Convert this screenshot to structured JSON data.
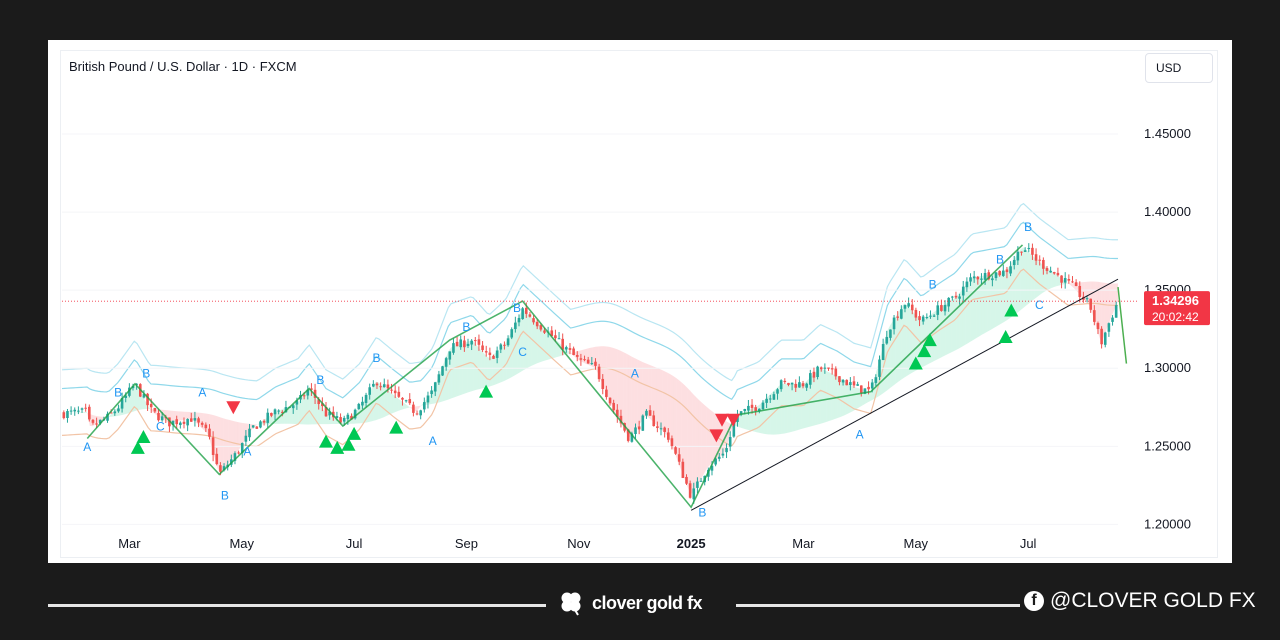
{
  "chart_data": {
    "type": "candlestick",
    "title": "British Pound / U.S. Dollar · 1D · FXCM",
    "currency": "USD",
    "y_ticks": [
      1.45,
      1.4,
      1.35,
      1.3,
      1.25,
      1.2
    ],
    "y_tick_labels": [
      "1.45000",
      "1.40000",
      "1.35000",
      "1.30000",
      "1.25000",
      "1.20000"
    ],
    "ylim": [
      1.19,
      1.475
    ],
    "x_ticks": [
      {
        "label": "Mar",
        "t": 1.2
      },
      {
        "label": "May",
        "t": 3.2
      },
      {
        "label": "Jul",
        "t": 5.2
      },
      {
        "label": "Sep",
        "t": 7.2
      },
      {
        "label": "Nov",
        "t": 9.2
      },
      {
        "label": "2025",
        "t": 11.2
      },
      {
        "label": "Mar",
        "t": 13.2
      },
      {
        "label": "May",
        "t": 15.2
      },
      {
        "label": "Jul",
        "t": 17.2
      }
    ],
    "xlim": [
      0,
      18.8
    ],
    "price_path": [
      [
        0.0,
        1.271
      ],
      [
        0.45,
        1.272
      ],
      [
        0.5,
        1.262
      ],
      [
        0.8,
        1.268
      ],
      [
        1.0,
        1.275
      ],
      [
        1.3,
        1.29
      ],
      [
        1.6,
        1.272
      ],
      [
        1.9,
        1.265
      ],
      [
        2.3,
        1.268
      ],
      [
        2.6,
        1.258
      ],
      [
        2.8,
        1.232
      ],
      [
        3.1,
        1.245
      ],
      [
        3.4,
        1.262
      ],
      [
        3.8,
        1.272
      ],
      [
        4.2,
        1.278
      ],
      [
        4.4,
        1.287
      ],
      [
        4.7,
        1.271
      ],
      [
        5.0,
        1.265
      ],
      [
        5.3,
        1.275
      ],
      [
        5.6,
        1.292
      ],
      [
        5.9,
        1.283
      ],
      [
        6.3,
        1.272
      ],
      [
        6.6,
        1.285
      ],
      [
        6.9,
        1.313
      ],
      [
        7.3,
        1.318
      ],
      [
        7.6,
        1.306
      ],
      [
        7.9,
        1.316
      ],
      [
        8.2,
        1.338
      ],
      [
        8.5,
        1.328
      ],
      [
        8.8,
        1.318
      ],
      [
        9.2,
        1.305
      ],
      [
        9.5,
        1.3
      ],
      [
        9.8,
        1.275
      ],
      [
        10.1,
        1.255
      ],
      [
        10.4,
        1.27
      ],
      [
        10.8,
        1.256
      ],
      [
        11.2,
        1.218
      ],
      [
        11.5,
        1.237
      ],
      [
        11.8,
        1.246
      ],
      [
        12.0,
        1.27
      ],
      [
        12.4,
        1.276
      ],
      [
        12.8,
        1.29
      ],
      [
        13.2,
        1.29
      ],
      [
        13.5,
        1.3
      ],
      [
        13.8,
        1.295
      ],
      [
        14.1,
        1.288
      ],
      [
        14.4,
        1.285
      ],
      [
        14.7,
        1.325
      ],
      [
        15.0,
        1.342
      ],
      [
        15.3,
        1.33
      ],
      [
        15.6,
        1.338
      ],
      [
        15.9,
        1.345
      ],
      [
        16.2,
        1.358
      ],
      [
        16.5,
        1.36
      ],
      [
        16.8,
        1.362
      ],
      [
        17.1,
        1.378
      ],
      [
        17.4,
        1.368
      ],
      [
        17.7,
        1.36
      ],
      [
        18.0,
        1.352
      ],
      [
        18.3,
        1.34
      ],
      [
        18.5,
        1.316
      ],
      [
        18.65,
        1.33
      ],
      [
        18.8,
        1.343
      ]
    ],
    "wave_labels": [
      {
        "text": "A",
        "t": 0.45,
        "y": 1.247
      },
      {
        "text": "B",
        "t": 1.0,
        "y": 1.282
      },
      {
        "text": "B",
        "t": 1.5,
        "y": 1.294
      },
      {
        "text": "C",
        "t": 1.75,
        "y": 1.26
      },
      {
        "text": "A",
        "t": 2.5,
        "y": 1.282
      },
      {
        "text": "B",
        "t": 2.9,
        "y": 1.216
      },
      {
        "text": "A",
        "t": 3.3,
        "y": 1.244
      },
      {
        "text": "B",
        "t": 4.6,
        "y": 1.29
      },
      {
        "text": "B",
        "t": 5.6,
        "y": 1.304
      },
      {
        "text": "A",
        "t": 6.6,
        "y": 1.251
      },
      {
        "text": "B",
        "t": 7.2,
        "y": 1.324
      },
      {
        "text": "B",
        "t": 8.1,
        "y": 1.336
      },
      {
        "text": "C",
        "t": 8.2,
        "y": 1.308
      },
      {
        "text": "A",
        "t": 10.2,
        "y": 1.294
      },
      {
        "text": "B",
        "t": 11.4,
        "y": 1.205
      },
      {
        "text": "A",
        "t": 14.2,
        "y": 1.255
      },
      {
        "text": "B",
        "t": 15.5,
        "y": 1.351
      },
      {
        "text": "B",
        "t": 16.7,
        "y": 1.367
      },
      {
        "text": "B",
        "t": 17.2,
        "y": 1.388
      },
      {
        "text": "C",
        "t": 17.4,
        "y": 1.338
      }
    ],
    "price_label": "1.34296",
    "countdown_label": "20:02:42",
    "last_price": 1.34296
  },
  "footer": {
    "brand": "clover gold fx",
    "social": "@CLOVER GOLD FX"
  },
  "colors": {
    "up": "#26a69a",
    "down": "#ef5350",
    "price_tag": "#f23645",
    "wave_label": "#2196f3",
    "buy_signal": "#00c853",
    "sell_signal": "#f23645"
  }
}
